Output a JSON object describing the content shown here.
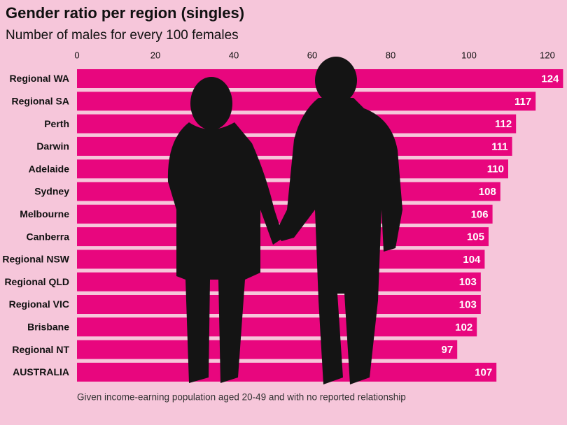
{
  "chart_data": {
    "type": "bar",
    "title": "Gender ratio per region (singles)",
    "subtitle": "Number of males for every 100 females",
    "note": "Given income-earning population aged 20-49 and with no reported relationship",
    "categories": [
      "Regional WA",
      "Regional SA",
      "Perth",
      "Darwin",
      "Adelaide",
      "Sydney",
      "Melbourne",
      "Canberra",
      "Regional NSW",
      "Regional QLD",
      "Regional VIC",
      "Brisbane",
      "Regional NT",
      "AUSTRALIA"
    ],
    "values": [
      124,
      117,
      112,
      111,
      110,
      108,
      106,
      105,
      104,
      103,
      103,
      102,
      97,
      107
    ],
    "color": "#e8067e",
    "xlim": [
      0,
      125
    ],
    "xticks": [
      0,
      20,
      40,
      60,
      80,
      100,
      120
    ]
  }
}
